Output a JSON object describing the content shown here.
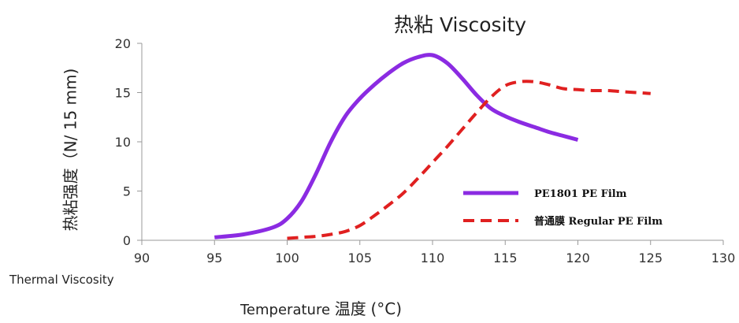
{
  "chart_data": {
    "type": "line",
    "title": "热粘   Viscosity",
    "ylabel": "热粘强度（N/ 15    mm)",
    "side_label": "Thermal Viscosity",
    "xlabel_en": "Temperature",
    "xlabel_zh": "温度",
    "xlabel_unit": "(°C)",
    "xlim": [
      90,
      130
    ],
    "ylim": [
      0,
      20
    ],
    "x_ticks": [
      90,
      95,
      100,
      105,
      110,
      115,
      120,
      125,
      130
    ],
    "y_ticks": [
      0,
      5,
      10,
      15,
      20
    ],
    "grid": false,
    "legend_position": "bottom-right",
    "series": [
      {
        "name": "PE1801 PE Film",
        "color": "#8b2be2",
        "style": "solid",
        "x": [
          95,
          97,
          99,
          100,
          101,
          102,
          103,
          104,
          105,
          106,
          107,
          108,
          109,
          110,
          111,
          112,
          113,
          114,
          115,
          116,
          117,
          118,
          119,
          120
        ],
        "y": [
          0.3,
          0.6,
          1.3,
          2.2,
          4.0,
          6.8,
          10.0,
          12.6,
          14.4,
          15.8,
          17.0,
          18.0,
          18.6,
          18.8,
          18.0,
          16.5,
          14.8,
          13.4,
          12.6,
          12.0,
          11.5,
          11.0,
          10.6,
          10.2
        ]
      },
      {
        "name": "普通膜 Regular PE Film",
        "color": "#e02020",
        "style": "dashed",
        "x": [
          100,
          101,
          102,
          103,
          104,
          105,
          106,
          107,
          108,
          109,
          110,
          111,
          112,
          113,
          114,
          115,
          116,
          117,
          118,
          119,
          120,
          121,
          122,
          123,
          124,
          125
        ],
        "y": [
          0.2,
          0.3,
          0.4,
          0.6,
          0.9,
          1.5,
          2.5,
          3.6,
          4.8,
          6.3,
          7.9,
          9.5,
          11.2,
          12.9,
          14.5,
          15.7,
          16.1,
          16.1,
          15.8,
          15.4,
          15.3,
          15.2,
          15.2,
          15.1,
          15.0,
          14.9
        ]
      }
    ]
  }
}
